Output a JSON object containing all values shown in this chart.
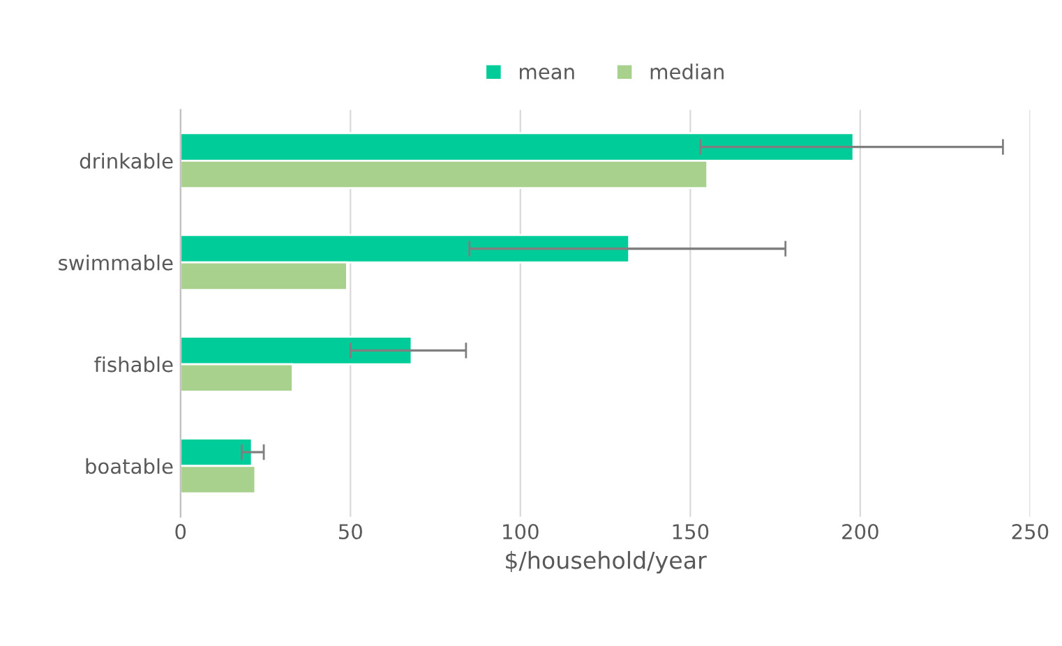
{
  "chart_data": {
    "type": "bar",
    "orientation": "horizontal",
    "xlabel": "$/household/year",
    "categories": [
      "drinkable",
      "swimmable",
      "fishable",
      "boatable"
    ],
    "series": [
      {
        "name": "mean",
        "color": "#00cc99",
        "values": [
          198,
          132,
          68,
          21
        ],
        "errors": [
          [
            153,
            242
          ],
          [
            85,
            178
          ],
          [
            50,
            84
          ],
          [
            18,
            24.5
          ]
        ]
      },
      {
        "name": "median",
        "color": "#a9d18e",
        "values": [
          155,
          49,
          33,
          22
        ]
      }
    ],
    "xlim": [
      0,
      250
    ],
    "xticks": [
      0,
      50,
      100,
      150,
      200,
      250
    ],
    "grid": "x",
    "legend": "top"
  }
}
